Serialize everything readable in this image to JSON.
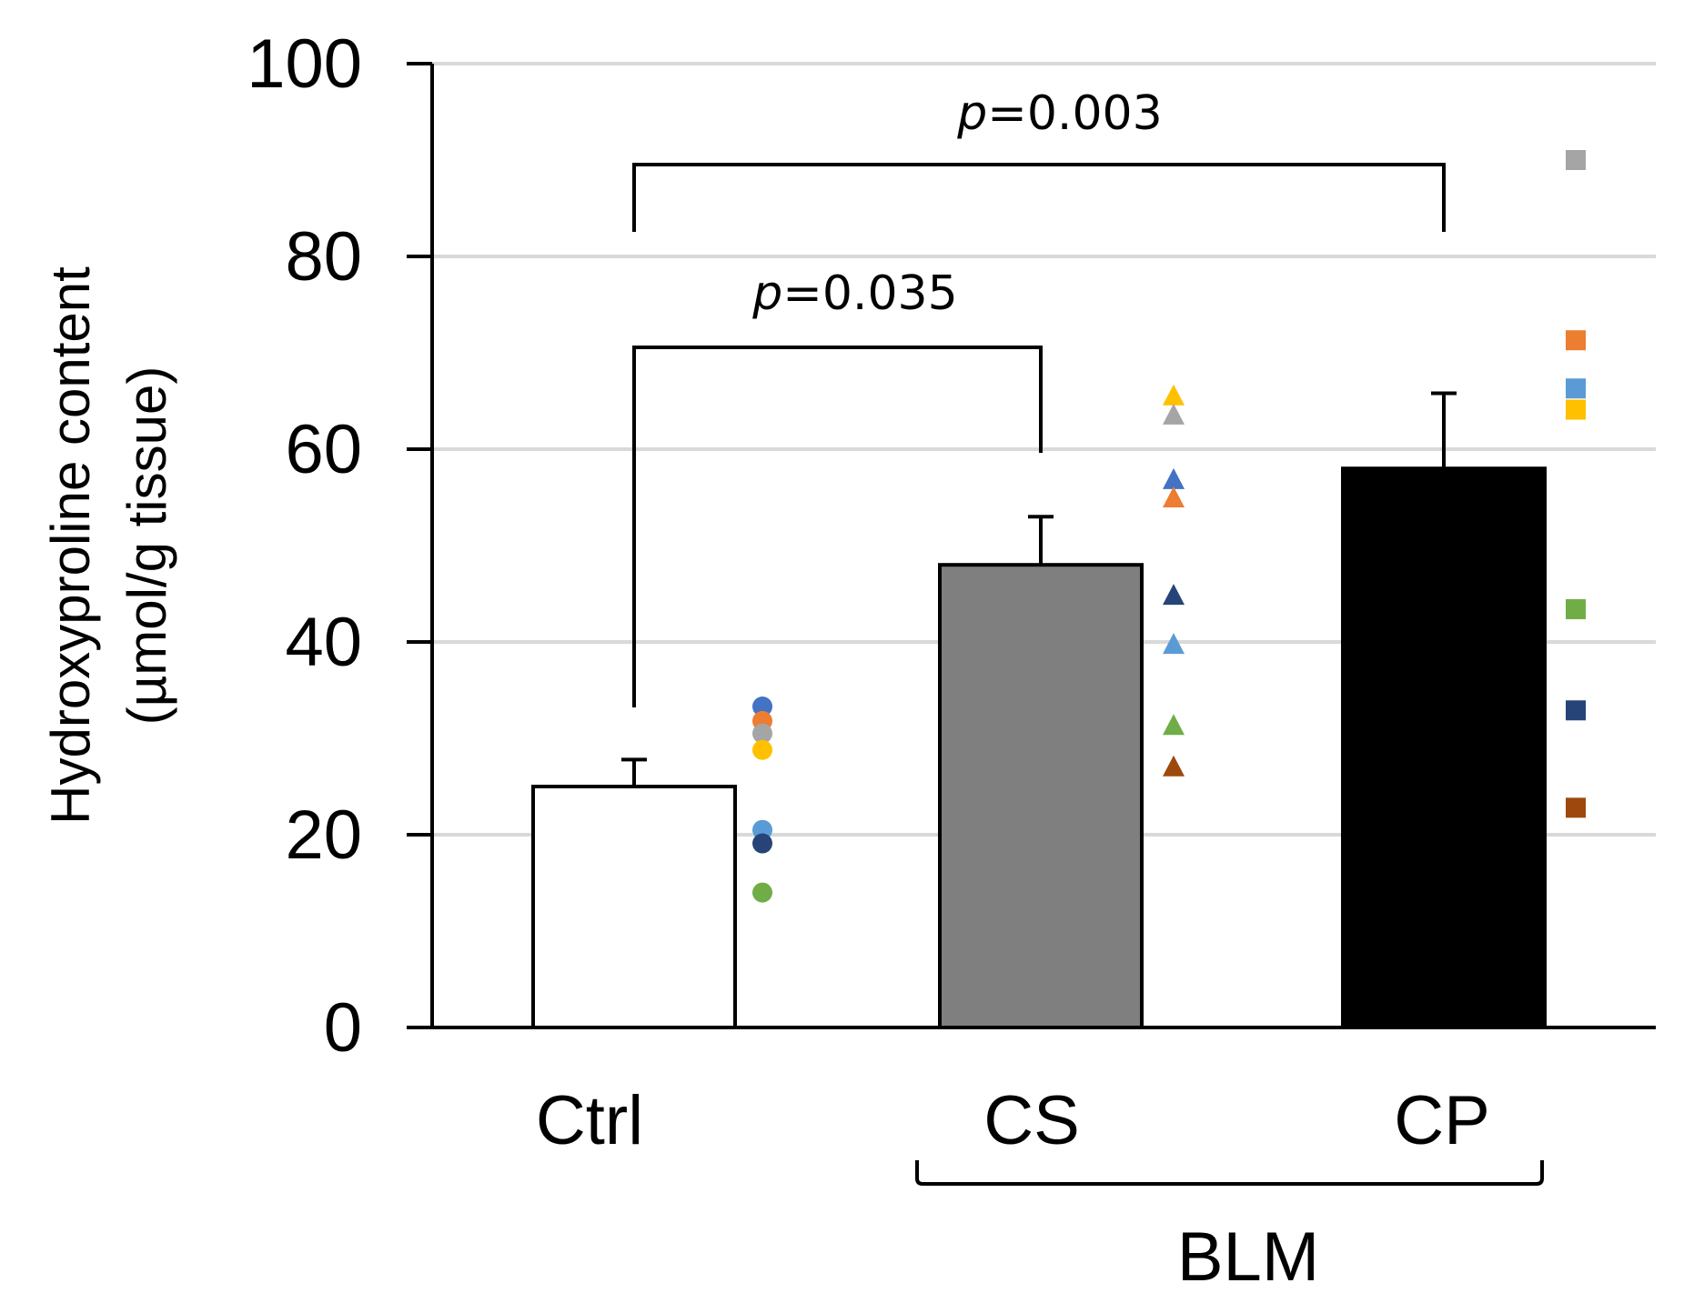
{
  "chart_data": {
    "type": "bar",
    "ylabel_line1": "Hydroxyproline content",
    "ylabel_line2": "(µmol/g tissue)",
    "ylim": [
      0,
      100
    ],
    "yticks": [
      0,
      20,
      40,
      60,
      80,
      100
    ],
    "ytick_labels": [
      "0",
      "20",
      "40",
      "60",
      "80",
      "100"
    ],
    "grid": true,
    "categories": [
      "Ctrl",
      "CS",
      "CP"
    ],
    "values": [
      25,
      48,
      58
    ],
    "errors": [
      2.8,
      5.0,
      7.8
    ],
    "bar_colors": [
      "#ffffff",
      "#7f7f7f",
      "#000000"
    ],
    "group_label": "BLM",
    "group_members": [
      "CS",
      "CP"
    ],
    "points": [
      {
        "category": "Ctrl",
        "marker": "circle",
        "values": [
          33.3,
          31.8,
          30.5,
          28.8,
          20.5,
          19.1,
          14.0
        ],
        "colors": [
          "#4472c4",
          "#ed7d31",
          "#a5a5a5",
          "#ffc000",
          "#5b9bd5",
          "#264478",
          "#70ad47"
        ]
      },
      {
        "category": "CS",
        "marker": "triangle",
        "values": [
          65.5,
          63.5,
          56.8,
          54.9,
          44.8,
          39.7,
          31.3,
          27.0
        ],
        "colors": [
          "#ffc000",
          "#a5a5a5",
          "#4472c4",
          "#ed7d31",
          "#264478",
          "#5b9bd5",
          "#70ad47",
          "#9e480e"
        ]
      },
      {
        "category": "CP",
        "marker": "square",
        "values": [
          90.0,
          71.3,
          66.3,
          64.1,
          43.4,
          32.9,
          22.8
        ],
        "colors": [
          "#a5a5a5",
          "#ed7d31",
          "#5b9bd5",
          "#ffc000",
          "#70ad47",
          "#264478",
          "#9e480e"
        ]
      }
    ],
    "comparisons": [
      {
        "from": "Ctrl",
        "to": "CS",
        "p_symbol": "p",
        "p_rest": "=0.035"
      },
      {
        "from": "Ctrl",
        "to": "CP",
        "p_symbol": "p",
        "p_rest": "=0.003"
      }
    ]
  }
}
